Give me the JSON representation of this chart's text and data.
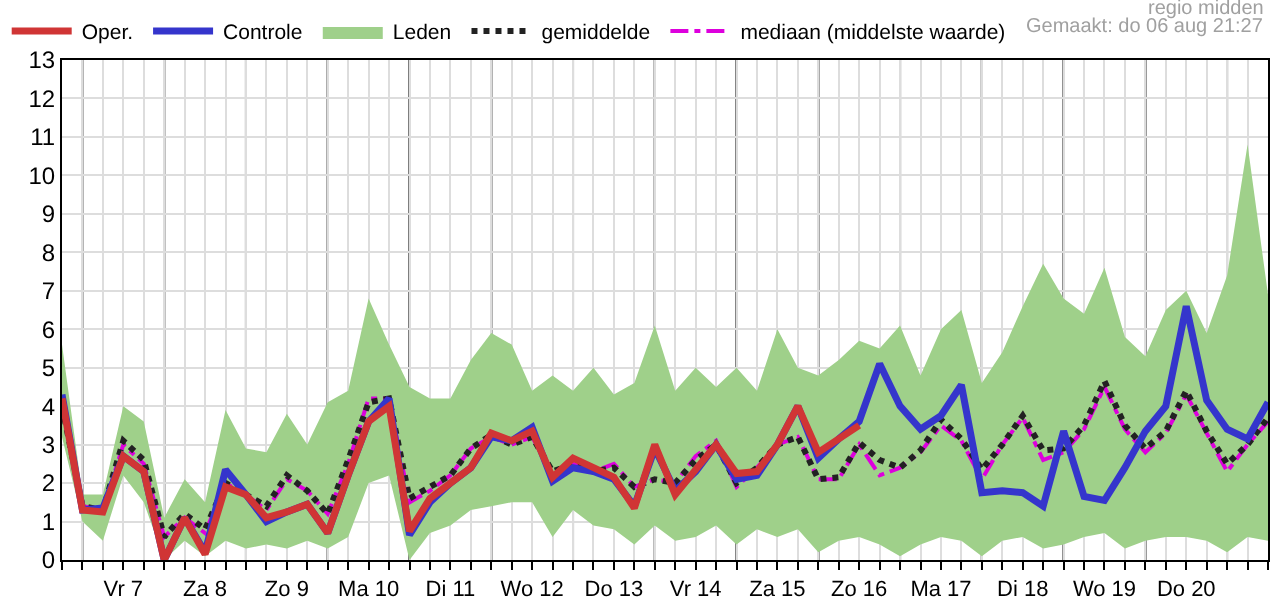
{
  "chart_data": {
    "type": "line",
    "categories": [
      null,
      null,
      null,
      "Vr 7",
      null,
      null,
      null,
      "Za 8",
      null,
      null,
      null,
      "Zo 9",
      null,
      null,
      null,
      "Ma 10",
      null,
      null,
      null,
      "Di 11",
      null,
      null,
      null,
      "Wo 12",
      null,
      null,
      null,
      "Do 13",
      null,
      null,
      null,
      "Vr 14",
      null,
      null,
      null,
      "Za 15",
      null,
      null,
      null,
      "Zo 16",
      null,
      null,
      null,
      "Ma 17",
      null,
      null,
      null,
      "Di 18",
      null,
      null,
      null,
      "Wo 19",
      null,
      null,
      null,
      "Do 20",
      null,
      null,
      null,
      null
    ],
    "series": [
      {
        "name": "Oper.",
        "color": "#d03535",
        "line_style": "solid",
        "values": [
          4.2,
          1.3,
          1.25,
          2.7,
          2.3,
          0.0,
          1.1,
          0.15,
          1.9,
          1.7,
          1.1,
          1.25,
          1.45,
          0.7,
          2.2,
          3.6,
          4.0,
          0.75,
          1.6,
          2.0,
          2.4,
          3.3,
          3.1,
          3.35,
          2.15,
          2.65,
          2.4,
          2.15,
          1.35,
          3.0,
          1.7,
          2.35,
          3.0,
          2.25,
          2.3,
          3.0,
          4.0,
          2.8,
          3.15,
          3.5,
          null,
          null,
          null,
          null,
          null,
          null,
          null,
          null,
          null,
          null,
          null,
          null,
          null,
          null,
          null,
          null,
          null,
          null,
          null,
          null
        ]
      },
      {
        "name": "Controle",
        "color": "#3535cc",
        "line_style": "solid",
        "values": [
          4.3,
          1.3,
          1.35,
          2.7,
          2.3,
          0.0,
          1.1,
          0.2,
          2.35,
          1.7,
          1.0,
          1.25,
          1.45,
          0.7,
          2.2,
          3.6,
          4.2,
          0.65,
          1.5,
          2.0,
          2.4,
          3.2,
          3.1,
          3.45,
          2.05,
          2.4,
          2.3,
          2.1,
          1.4,
          2.9,
          1.8,
          2.3,
          3.0,
          2.1,
          2.2,
          3.0,
          4.0,
          2.65,
          3.15,
          3.6,
          5.1,
          4.0,
          3.4,
          3.75,
          4.55,
          1.75,
          1.8,
          1.75,
          1.4,
          3.35,
          1.65,
          1.55,
          2.4,
          3.35,
          4.0,
          6.6,
          4.15,
          3.4,
          3.15,
          4.1
        ]
      },
      {
        "name": "Leden",
        "color": "#9fd08a",
        "line_style": "solid",
        "values": [
          null,
          null,
          null,
          null,
          null,
          null,
          null,
          null,
          null,
          null,
          null,
          null,
          null,
          null,
          null,
          null,
          null,
          null,
          null,
          null,
          null,
          null,
          null,
          null,
          null,
          null,
          null,
          null,
          null,
          null,
          null,
          null,
          null,
          null,
          null,
          null,
          null,
          null,
          null,
          null,
          null,
          null,
          null,
          null,
          null,
          null,
          null,
          null,
          null,
          null,
          null,
          null,
          null,
          null,
          null,
          null,
          null,
          null,
          null,
          null
        ],
        "lower": [
          3.2,
          1.0,
          0.5,
          2.2,
          1.5,
          0.0,
          0.5,
          0.1,
          0.5,
          0.3,
          0.4,
          0.3,
          0.5,
          0.3,
          0.6,
          2.0,
          2.2,
          0.0,
          0.7,
          0.9,
          1.3,
          1.4,
          1.5,
          1.5,
          0.6,
          1.3,
          0.9,
          0.8,
          0.4,
          0.9,
          0.5,
          0.6,
          0.9,
          0.4,
          0.8,
          0.6,
          0.8,
          0.2,
          0.5,
          0.6,
          0.4,
          0.1,
          0.4,
          0.6,
          0.5,
          0.1,
          0.5,
          0.6,
          0.3,
          0.4,
          0.6,
          0.7,
          0.3,
          0.5,
          0.6,
          0.6,
          0.5,
          0.2,
          0.6,
          0.5
        ],
        "upper": [
          5.6,
          1.7,
          1.7,
          4.0,
          3.6,
          1.1,
          2.1,
          1.5,
          3.9,
          2.9,
          2.8,
          3.8,
          3.0,
          4.1,
          4.4,
          6.8,
          5.6,
          4.5,
          4.2,
          4.2,
          5.2,
          5.9,
          5.6,
          4.4,
          4.8,
          4.4,
          5.0,
          4.3,
          4.6,
          6.1,
          4.4,
          5.0,
          4.5,
          5.0,
          4.4,
          6.0,
          5.0,
          4.8,
          5.2,
          5.7,
          5.5,
          6.1,
          4.8,
          6.0,
          6.5,
          4.6,
          5.4,
          6.6,
          7.7,
          6.8,
          6.4,
          7.6,
          5.8,
          5.3,
          6.5,
          7.0,
          5.9,
          7.4,
          10.8,
          6.9
        ]
      },
      {
        "name": "gemiddelde",
        "color": "#222222",
        "line_style": "dotted",
        "values": [
          4.0,
          1.4,
          1.3,
          3.1,
          2.6,
          0.6,
          1.2,
          0.8,
          2.0,
          1.7,
          1.4,
          2.2,
          1.8,
          1.2,
          2.6,
          4.1,
          4.2,
          1.6,
          1.9,
          2.2,
          2.9,
          3.25,
          3.0,
          3.2,
          2.3,
          2.5,
          2.3,
          2.4,
          1.9,
          2.1,
          2.0,
          2.6,
          3.0,
          2.0,
          2.4,
          3.0,
          3.2,
          2.1,
          2.15,
          3.05,
          2.6,
          2.4,
          2.85,
          3.65,
          3.15,
          2.35,
          3.0,
          3.75,
          2.85,
          2.9,
          3.5,
          4.65,
          3.5,
          2.9,
          3.35,
          4.4,
          3.35,
          2.5,
          3.0,
          3.7
        ]
      },
      {
        "name": "mediaan (middelste waarde)",
        "color": "#dd00dd",
        "line_style": "dashed",
        "values": [
          4.1,
          1.4,
          1.3,
          3.0,
          2.5,
          0.6,
          1.1,
          0.7,
          2.0,
          1.7,
          1.3,
          2.1,
          1.8,
          1.2,
          2.5,
          4.2,
          4.2,
          1.5,
          1.8,
          2.2,
          2.9,
          3.2,
          3.0,
          3.2,
          2.2,
          2.5,
          2.3,
          2.5,
          1.9,
          2.1,
          2.0,
          2.7,
          3.1,
          1.9,
          2.4,
          3.0,
          3.2,
          2.1,
          2.1,
          3.0,
          2.2,
          2.4,
          2.8,
          3.5,
          3.1,
          2.1,
          3.0,
          3.7,
          2.6,
          2.8,
          3.4,
          4.5,
          3.4,
          2.8,
          3.3,
          4.3,
          3.3,
          2.3,
          3.0,
          3.6
        ]
      }
    ],
    "ylim": [
      0,
      13
    ],
    "yticks": [
      0,
      1,
      2,
      3,
      4,
      5,
      6,
      7,
      8,
      9,
      10,
      11,
      12,
      13
    ],
    "grid": true,
    "legend": "top",
    "marker": "none",
    "annotations": [
      "regio midden",
      "Gemaakt: do 06 aug 21:27"
    ]
  }
}
